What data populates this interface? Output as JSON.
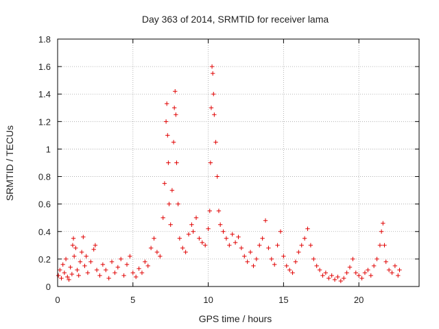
{
  "chart_data": {
    "type": "scatter",
    "title": "Day 363 of 2014, SRMTID for receiver lama",
    "xlabel": "GPS time / hours",
    "ylabel": "SRMTID / TECUs",
    "xlim": [
      0,
      24
    ],
    "ylim": [
      0,
      1.8
    ],
    "x_ticks": [
      0,
      5,
      10,
      15,
      20
    ],
    "x_tick_labels": [
      "0",
      "5",
      "10",
      "15",
      "20"
    ],
    "y_ticks": [
      0,
      0.2,
      0.4,
      0.6,
      0.8,
      1.0,
      1.2,
      1.4,
      1.6,
      1.8
    ],
    "y_tick_labels": [
      "0",
      "0.2",
      "0.4",
      "0.6",
      "0.8",
      "1",
      "1.2",
      "1.4",
      "1.6",
      "1.8"
    ],
    "grid": true,
    "marker": "+",
    "color": "#e00000",
    "series": [
      {
        "name": "SRMTID",
        "points": [
          [
            0.05,
            0.08
          ],
          [
            0.15,
            0.12
          ],
          [
            0.25,
            0.06
          ],
          [
            0.35,
            0.16
          ],
          [
            0.45,
            0.1
          ],
          [
            0.55,
            0.2
          ],
          [
            0.65,
            0.07
          ],
          [
            0.75,
            0.05
          ],
          [
            0.85,
            0.14
          ],
          [
            0.95,
            0.09
          ],
          [
            1.0,
            0.3
          ],
          [
            1.05,
            0.35
          ],
          [
            1.1,
            0.22
          ],
          [
            1.2,
            0.28
          ],
          [
            1.3,
            0.12
          ],
          [
            1.4,
            0.08
          ],
          [
            1.5,
            0.18
          ],
          [
            1.6,
            0.25
          ],
          [
            1.7,
            0.36
          ],
          [
            1.8,
            0.15
          ],
          [
            1.9,
            0.22
          ],
          [
            2.0,
            0.1
          ],
          [
            2.2,
            0.18
          ],
          [
            2.4,
            0.27
          ],
          [
            2.5,
            0.3
          ],
          [
            2.6,
            0.12
          ],
          [
            2.8,
            0.08
          ],
          [
            3.0,
            0.16
          ],
          [
            3.2,
            0.12
          ],
          [
            3.4,
            0.06
          ],
          [
            3.6,
            0.18
          ],
          [
            3.8,
            0.1
          ],
          [
            4.0,
            0.14
          ],
          [
            4.2,
            0.2
          ],
          [
            4.4,
            0.08
          ],
          [
            4.6,
            0.16
          ],
          [
            4.8,
            0.22
          ],
          [
            5.0,
            0.1
          ],
          [
            5.2,
            0.07
          ],
          [
            5.4,
            0.13
          ],
          [
            5.6,
            0.1
          ],
          [
            5.8,
            0.18
          ],
          [
            6.0,
            0.15
          ],
          [
            6.2,
            0.28
          ],
          [
            6.4,
            0.35
          ],
          [
            6.6,
            0.25
          ],
          [
            6.8,
            0.22
          ],
          [
            7.0,
            0.5
          ],
          [
            7.1,
            0.75
          ],
          [
            7.2,
            1.2
          ],
          [
            7.25,
            1.33
          ],
          [
            7.3,
            1.1
          ],
          [
            7.35,
            0.9
          ],
          [
            7.4,
            0.6
          ],
          [
            7.5,
            0.45
          ],
          [
            7.6,
            0.7
          ],
          [
            7.7,
            1.05
          ],
          [
            7.75,
            1.3
          ],
          [
            7.8,
            1.42
          ],
          [
            7.85,
            1.25
          ],
          [
            7.9,
            0.9
          ],
          [
            8.0,
            0.6
          ],
          [
            8.1,
            0.35
          ],
          [
            8.3,
            0.28
          ],
          [
            8.5,
            0.25
          ],
          [
            8.7,
            0.38
          ],
          [
            8.9,
            0.45
          ],
          [
            9.0,
            0.4
          ],
          [
            9.2,
            0.5
          ],
          [
            9.4,
            0.35
          ],
          [
            9.6,
            0.32
          ],
          [
            9.8,
            0.3
          ],
          [
            10.0,
            0.42
          ],
          [
            10.1,
            0.55
          ],
          [
            10.15,
            0.9
          ],
          [
            10.2,
            1.3
          ],
          [
            10.25,
            1.6
          ],
          [
            10.3,
            1.55
          ],
          [
            10.35,
            1.4
          ],
          [
            10.4,
            1.25
          ],
          [
            10.5,
            1.05
          ],
          [
            10.6,
            0.8
          ],
          [
            10.7,
            0.55
          ],
          [
            10.8,
            0.45
          ],
          [
            11.0,
            0.4
          ],
          [
            11.2,
            0.35
          ],
          [
            11.4,
            0.3
          ],
          [
            11.6,
            0.38
          ],
          [
            11.8,
            0.32
          ],
          [
            12.0,
            0.36
          ],
          [
            12.2,
            0.28
          ],
          [
            12.4,
            0.22
          ],
          [
            12.6,
            0.18
          ],
          [
            12.8,
            0.25
          ],
          [
            13.0,
            0.15
          ],
          [
            13.2,
            0.2
          ],
          [
            13.4,
            0.3
          ],
          [
            13.6,
            0.35
          ],
          [
            13.8,
            0.48
          ],
          [
            14.0,
            0.28
          ],
          [
            14.2,
            0.2
          ],
          [
            14.4,
            0.16
          ],
          [
            14.6,
            0.3
          ],
          [
            14.8,
            0.4
          ],
          [
            15.0,
            0.22
          ],
          [
            15.2,
            0.15
          ],
          [
            15.4,
            0.12
          ],
          [
            15.6,
            0.1
          ],
          [
            15.8,
            0.18
          ],
          [
            16.0,
            0.25
          ],
          [
            16.2,
            0.3
          ],
          [
            16.4,
            0.35
          ],
          [
            16.6,
            0.42
          ],
          [
            16.8,
            0.3
          ],
          [
            17.0,
            0.2
          ],
          [
            17.2,
            0.15
          ],
          [
            17.4,
            0.12
          ],
          [
            17.6,
            0.08
          ],
          [
            17.8,
            0.1
          ],
          [
            18.0,
            0.06
          ],
          [
            18.2,
            0.08
          ],
          [
            18.4,
            0.05
          ],
          [
            18.6,
            0.07
          ],
          [
            18.8,
            0.04
          ],
          [
            19.0,
            0.06
          ],
          [
            19.2,
            0.1
          ],
          [
            19.4,
            0.14
          ],
          [
            19.6,
            0.2
          ],
          [
            19.8,
            0.1
          ],
          [
            20.0,
            0.08
          ],
          [
            20.2,
            0.06
          ],
          [
            20.4,
            0.1
          ],
          [
            20.6,
            0.12
          ],
          [
            20.8,
            0.08
          ],
          [
            21.0,
            0.15
          ],
          [
            21.2,
            0.2
          ],
          [
            21.4,
            0.3
          ],
          [
            21.5,
            0.4
          ],
          [
            21.6,
            0.46
          ],
          [
            21.7,
            0.3
          ],
          [
            21.8,
            0.18
          ],
          [
            22.0,
            0.12
          ],
          [
            22.2,
            0.1
          ],
          [
            22.4,
            0.15
          ],
          [
            22.6,
            0.08
          ],
          [
            22.7,
            0.12
          ]
        ]
      }
    ]
  }
}
